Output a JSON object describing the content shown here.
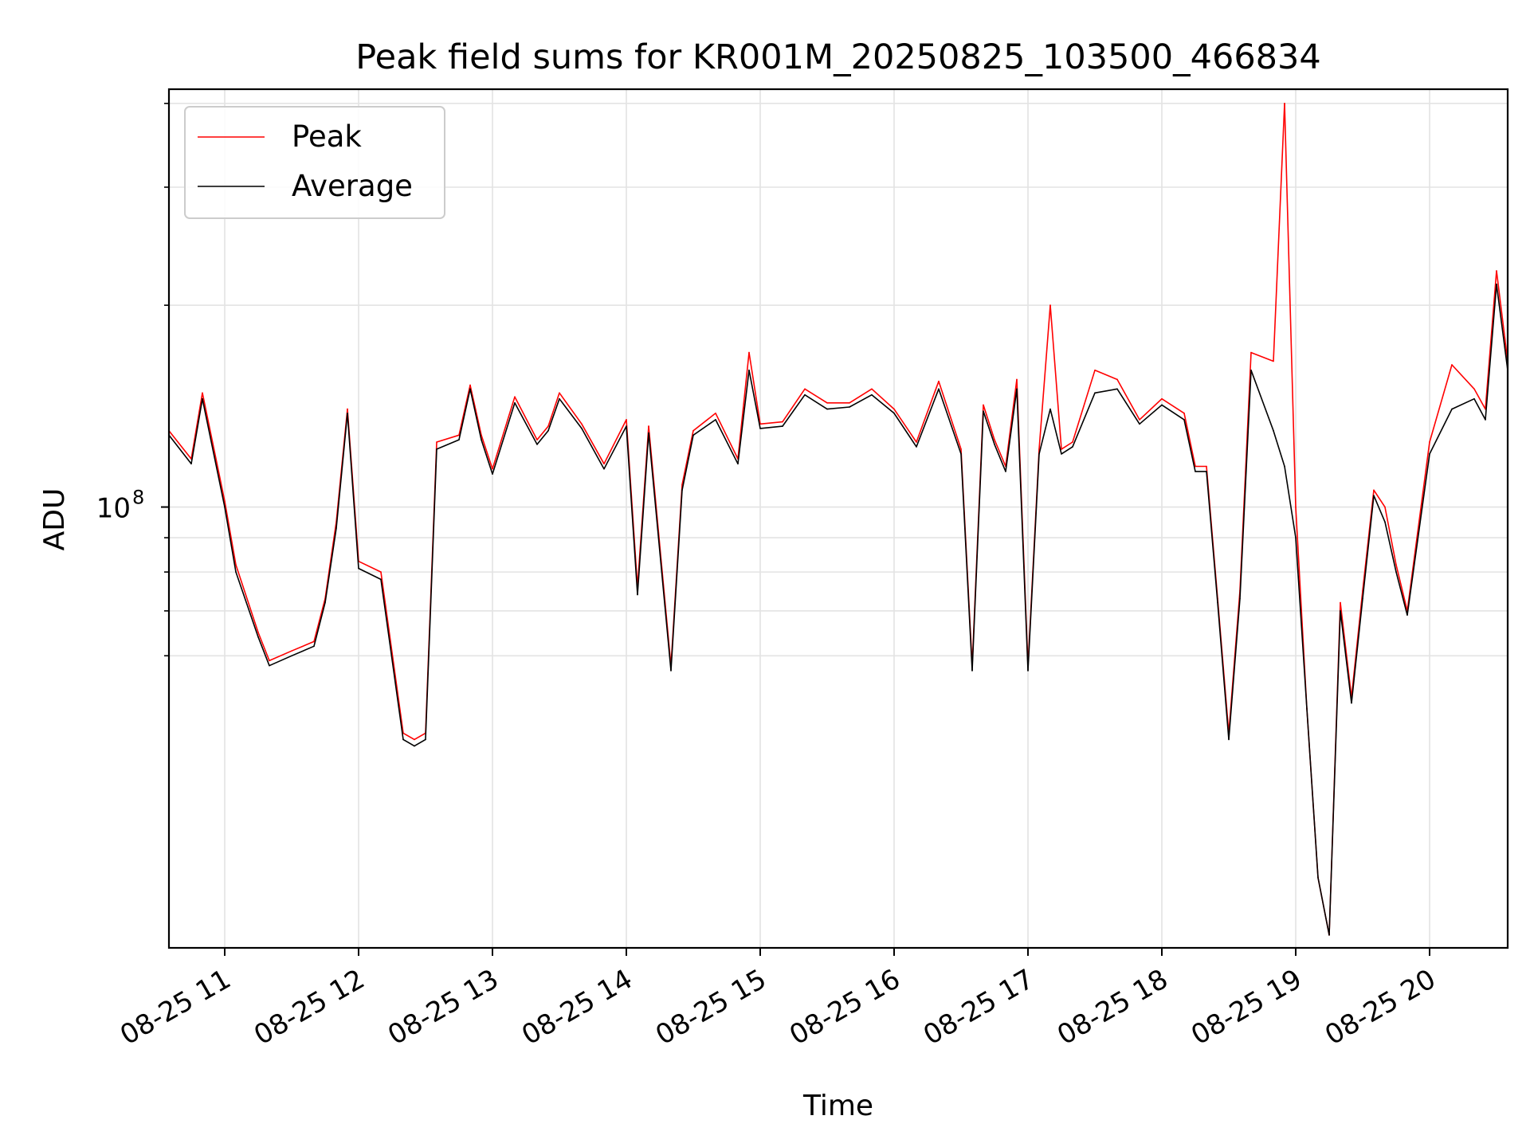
{
  "chart_data": {
    "type": "line",
    "title": "Peak field sums for KR001M_20250825_103500_466834",
    "xlabel": "Time",
    "ylabel": "ADU",
    "y_scale": "log",
    "ylim": [
      22000000,
      420000000
    ],
    "xlim": [
      "2025-08-25 10:35",
      "2025-08-25 20:35"
    ],
    "x_ticks": [
      "08-25 11",
      "08-25 12",
      "08-25 13",
      "08-25 14",
      "08-25 15",
      "08-25 16",
      "08-25 17",
      "08-25 18",
      "08-25 19",
      "08-25 20"
    ],
    "y_ticks": [
      {
        "value": 100000000,
        "label_base": "10",
        "label_exp": "8"
      }
    ],
    "y_minor_ticks": [
      60000000,
      70000000,
      80000000,
      90000000,
      200000000,
      300000000,
      400000000
    ],
    "grid": true,
    "legend_position": "upper left",
    "x": [
      "2025-08-25 10:35",
      "2025-08-25 10:45",
      "2025-08-25 10:50",
      "2025-08-25 11:00",
      "2025-08-25 11:05",
      "2025-08-25 11:15",
      "2025-08-25 11:20",
      "2025-08-25 11:30",
      "2025-08-25 11:40",
      "2025-08-25 11:45",
      "2025-08-25 11:50",
      "2025-08-25 11:55",
      "2025-08-25 12:00",
      "2025-08-25 12:10",
      "2025-08-25 12:20",
      "2025-08-25 12:25",
      "2025-08-25 12:30",
      "2025-08-25 12:35",
      "2025-08-25 12:45",
      "2025-08-25 12:50",
      "2025-08-25 12:55",
      "2025-08-25 13:00",
      "2025-08-25 13:10",
      "2025-08-25 13:20",
      "2025-08-25 13:25",
      "2025-08-25 13:30",
      "2025-08-25 13:40",
      "2025-08-25 13:50",
      "2025-08-25 14:00",
      "2025-08-25 14:05",
      "2025-08-25 14:10",
      "2025-08-25 14:20",
      "2025-08-25 14:25",
      "2025-08-25 14:30",
      "2025-08-25 14:40",
      "2025-08-25 14:50",
      "2025-08-25 14:55",
      "2025-08-25 15:00",
      "2025-08-25 15:10",
      "2025-08-25 15:20",
      "2025-08-25 15:30",
      "2025-08-25 15:40",
      "2025-08-25 15:50",
      "2025-08-25 16:00",
      "2025-08-25 16:10",
      "2025-08-25 16:20",
      "2025-08-25 16:30",
      "2025-08-25 16:35",
      "2025-08-25 16:40",
      "2025-08-25 16:45",
      "2025-08-25 16:50",
      "2025-08-25 16:55",
      "2025-08-25 17:00",
      "2025-08-25 17:05",
      "2025-08-25 17:10",
      "2025-08-25 17:15",
      "2025-08-25 17:20",
      "2025-08-25 17:30",
      "2025-08-25 17:40",
      "2025-08-25 17:50",
      "2025-08-25 18:00",
      "2025-08-25 18:10",
      "2025-08-25 18:15",
      "2025-08-25 18:20",
      "2025-08-25 18:25",
      "2025-08-25 18:30",
      "2025-08-25 18:35",
      "2025-08-25 18:40",
      "2025-08-25 18:50",
      "2025-08-25 18:55",
      "2025-08-25 19:00",
      "2025-08-25 19:05",
      "2025-08-25 19:10",
      "2025-08-25 19:15",
      "2025-08-25 19:20",
      "2025-08-25 19:25",
      "2025-08-25 19:30",
      "2025-08-25 19:35",
      "2025-08-25 19:40",
      "2025-08-25 19:45",
      "2025-08-25 19:50",
      "2025-08-25 20:00",
      "2025-08-25 20:10",
      "2025-08-25 20:20",
      "2025-08-25 20:25",
      "2025-08-25 20:30",
      "2025-08-25 20:35"
    ],
    "series": [
      {
        "name": "Peak",
        "color": "#ff0000",
        "values": [
          130000000,
          118000000,
          148000000,
          102000000,
          82000000,
          65000000,
          59000000,
          61000000,
          63000000,
          73000000,
          95000000,
          140000000,
          83000000,
          80000000,
          46000000,
          45000000,
          46000000,
          125000000,
          128000000,
          152000000,
          128000000,
          114000000,
          146000000,
          126000000,
          132000000,
          148000000,
          133000000,
          116000000,
          135000000,
          76000000,
          132000000,
          58000000,
          108000000,
          130000000,
          138000000,
          118000000,
          170000000,
          133000000,
          134000000,
          150000000,
          143000000,
          143000000,
          150000000,
          140000000,
          125000000,
          154000000,
          122000000,
          58000000,
          142000000,
          126000000,
          115000000,
          155000000,
          58000000,
          122000000,
          200000000,
          122000000,
          125000000,
          160000000,
          155000000,
          135000000,
          145000000,
          138000000,
          115000000,
          115000000,
          73000000,
          46000000,
          75000000,
          170000000,
          165000000,
          400000000,
          100000000,
          50000000,
          28000000,
          23000000,
          72000000,
          52000000,
          75000000,
          106000000,
          100000000,
          82000000,
          70000000,
          125000000,
          163000000,
          150000000,
          140000000,
          225000000,
          165000000
        ]
      },
      {
        "name": "Average",
        "color": "#000000",
        "values": [
          128000000,
          116000000,
          145000000,
          100000000,
          80000000,
          64000000,
          58000000,
          60000000,
          62000000,
          72000000,
          93000000,
          138000000,
          81000000,
          78000000,
          45000000,
          44000000,
          45000000,
          122000000,
          126000000,
          150000000,
          126000000,
          112000000,
          143000000,
          124000000,
          130000000,
          145000000,
          131000000,
          114000000,
          132000000,
          74000000,
          129000000,
          57000000,
          106000000,
          128000000,
          135000000,
          116000000,
          160000000,
          131000000,
          132000000,
          147000000,
          140000000,
          141000000,
          147000000,
          138000000,
          123000000,
          150000000,
          120000000,
          57000000,
          139000000,
          124000000,
          113000000,
          150000000,
          57000000,
          120000000,
          140000000,
          120000000,
          123000000,
          148000000,
          150000000,
          133000000,
          142000000,
          135000000,
          113000000,
          113000000,
          72000000,
          45000000,
          73000000,
          160000000,
          130000000,
          115000000,
          90000000,
          50000000,
          28000000,
          23000000,
          70000000,
          51000000,
          73000000,
          104000000,
          95000000,
          80000000,
          69000000,
          120000000,
          140000000,
          145000000,
          135000000,
          215000000,
          160000000
        ]
      }
    ]
  }
}
